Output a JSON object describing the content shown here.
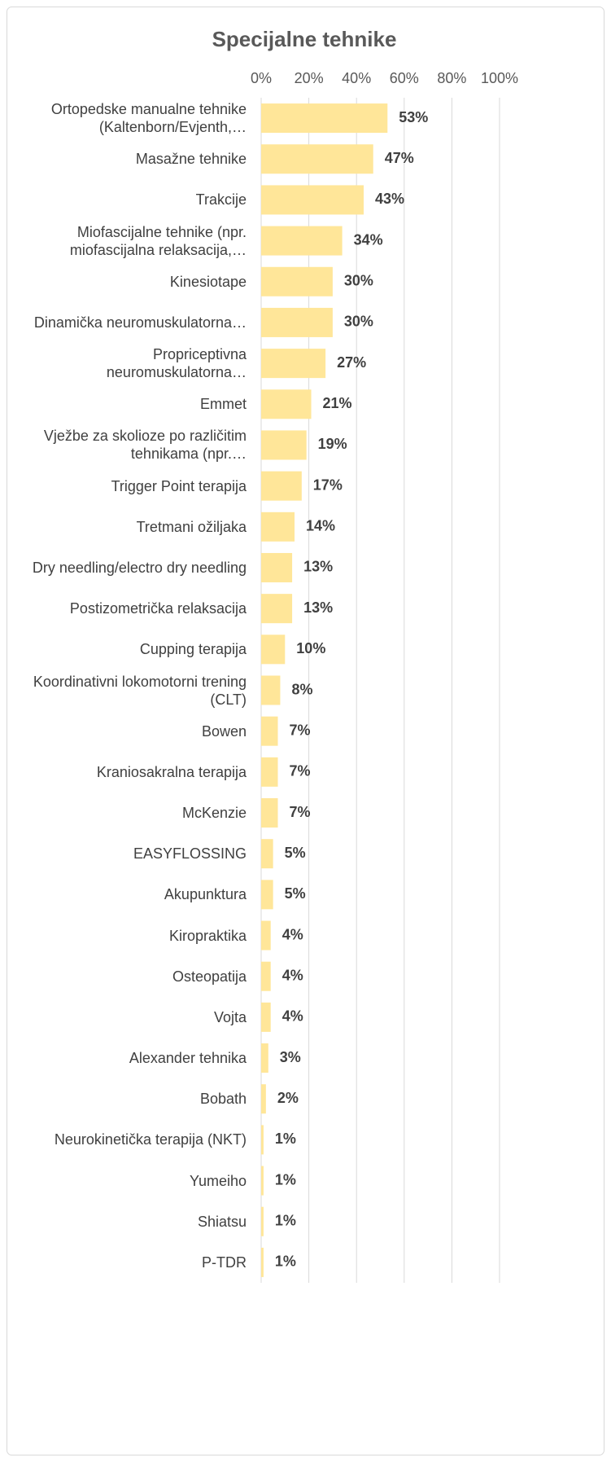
{
  "chart_data": {
    "type": "bar",
    "orientation": "horizontal",
    "title": "Specijalne tehnike",
    "categories": [
      "Ortopedske manualne tehnike (Kaltenborn/Evjenth,…",
      "Masažne tehnike",
      "Trakcije",
      "Miofascijalne tehnike (npr. miofascijalna relaksacija,…",
      "Kinesiotape",
      "Dinamička neuromuskulatorna…",
      "Propriceptivna neuromuskulatorna…",
      "Emmet",
      "Vježbe za skolioze po različitim tehnikama (npr.…",
      "Trigger Point terapija",
      "Tretmani ožiljaka",
      "Dry needling/electro dry needling",
      "Postizometrička relaksacija",
      "Cupping terapija",
      "Koordinativni lokomotorni trening (CLT)",
      "Bowen",
      "Kraniosakralna terapija",
      "McKenzie",
      "EASYFLOSSING",
      "Akupunktura",
      "Kiropraktika",
      "Osteopatija",
      "Vojta",
      "Alexander tehnika",
      "Bobath",
      "Neurokinetička terapija (NKT)",
      "Yumeiho",
      "Shiatsu",
      "P-TDR"
    ],
    "values": [
      53,
      47,
      43,
      34,
      30,
      30,
      27,
      21,
      19,
      17,
      14,
      13,
      13,
      10,
      8,
      7,
      7,
      7,
      5,
      5,
      4,
      4,
      4,
      3,
      2,
      1,
      1,
      1,
      1
    ],
    "value_labels": [
      "53%",
      "47%",
      "43%",
      "34%",
      "30%",
      "30%",
      "27%",
      "21%",
      "19%",
      "17%",
      "14%",
      "13%",
      "13%",
      "10%",
      "8%",
      "7%",
      "7%",
      "7%",
      "5%",
      "5%",
      "4%",
      "4%",
      "4%",
      "3%",
      "2%",
      "1%",
      "1%",
      "1%",
      "1%"
    ],
    "color": "#ffe699",
    "xlim": [
      0,
      100
    ],
    "xticks": [
      {
        "value": 0,
        "label": "0%"
      },
      {
        "value": 20,
        "label": "20%"
      },
      {
        "value": 40,
        "label": "40%"
      },
      {
        "value": 60,
        "label": "60%"
      },
      {
        "value": 80,
        "label": "80%"
      },
      {
        "value": 100,
        "label": "100%"
      }
    ],
    "grid": true
  }
}
